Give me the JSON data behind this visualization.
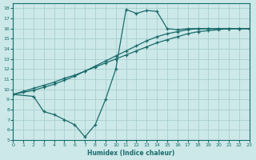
{
  "xlabel": "Humidex (Indice chaleur)",
  "bg_color": "#cce8e8",
  "grid_color": "#aacfcf",
  "line_color": "#1a6b6b",
  "xlim": [
    0,
    23
  ],
  "ylim": [
    5,
    18.5
  ],
  "xticks": [
    0,
    1,
    2,
    3,
    4,
    5,
    6,
    7,
    8,
    9,
    10,
    11,
    12,
    13,
    14,
    15,
    16,
    17,
    18,
    19,
    20,
    21,
    22,
    23
  ],
  "yticks": [
    5,
    6,
    7,
    8,
    9,
    10,
    11,
    12,
    13,
    14,
    15,
    16,
    17,
    18
  ],
  "curve1_x": [
    0,
    1,
    2,
    3,
    4,
    5,
    6,
    7,
    8,
    9,
    10,
    11,
    12,
    13,
    14,
    15,
    16,
    17,
    18,
    19,
    20,
    21,
    22,
    23
  ],
  "curve1_y": [
    9.5,
    9.8,
    10.1,
    10.4,
    10.7,
    11.1,
    11.4,
    11.8,
    12.2,
    12.6,
    13.0,
    13.4,
    13.8,
    14.2,
    14.6,
    14.9,
    15.2,
    15.5,
    15.7,
    15.8,
    15.9,
    16.0,
    16.0,
    16.0
  ],
  "curve2_x": [
    0,
    1,
    2,
    3,
    4,
    5,
    6,
    7,
    8,
    9,
    10,
    11,
    12,
    13,
    14,
    15,
    16,
    17,
    18,
    19,
    20,
    21,
    22,
    23
  ],
  "curve2_y": [
    9.5,
    9.7,
    9.9,
    10.2,
    10.5,
    10.9,
    11.3,
    11.8,
    12.3,
    12.8,
    13.3,
    13.8,
    14.3,
    14.8,
    15.2,
    15.5,
    15.7,
    15.9,
    16.0,
    16.0,
    16.0,
    16.0,
    16.0,
    16.0
  ],
  "curve3_x": [
    0,
    2,
    3,
    4,
    5,
    6,
    7,
    8,
    9,
    10,
    11,
    12,
    13,
    14,
    15,
    16,
    17,
    18,
    19,
    20,
    21,
    22,
    23
  ],
  "curve3_y": [
    9.5,
    9.3,
    7.8,
    7.5,
    7.0,
    6.5,
    5.3,
    6.5,
    9.0,
    12.0,
    17.9,
    17.5,
    17.8,
    17.7,
    16.0,
    15.9,
    16.0,
    16.0,
    16.0,
    16.0,
    16.0,
    16.0,
    16.0
  ]
}
